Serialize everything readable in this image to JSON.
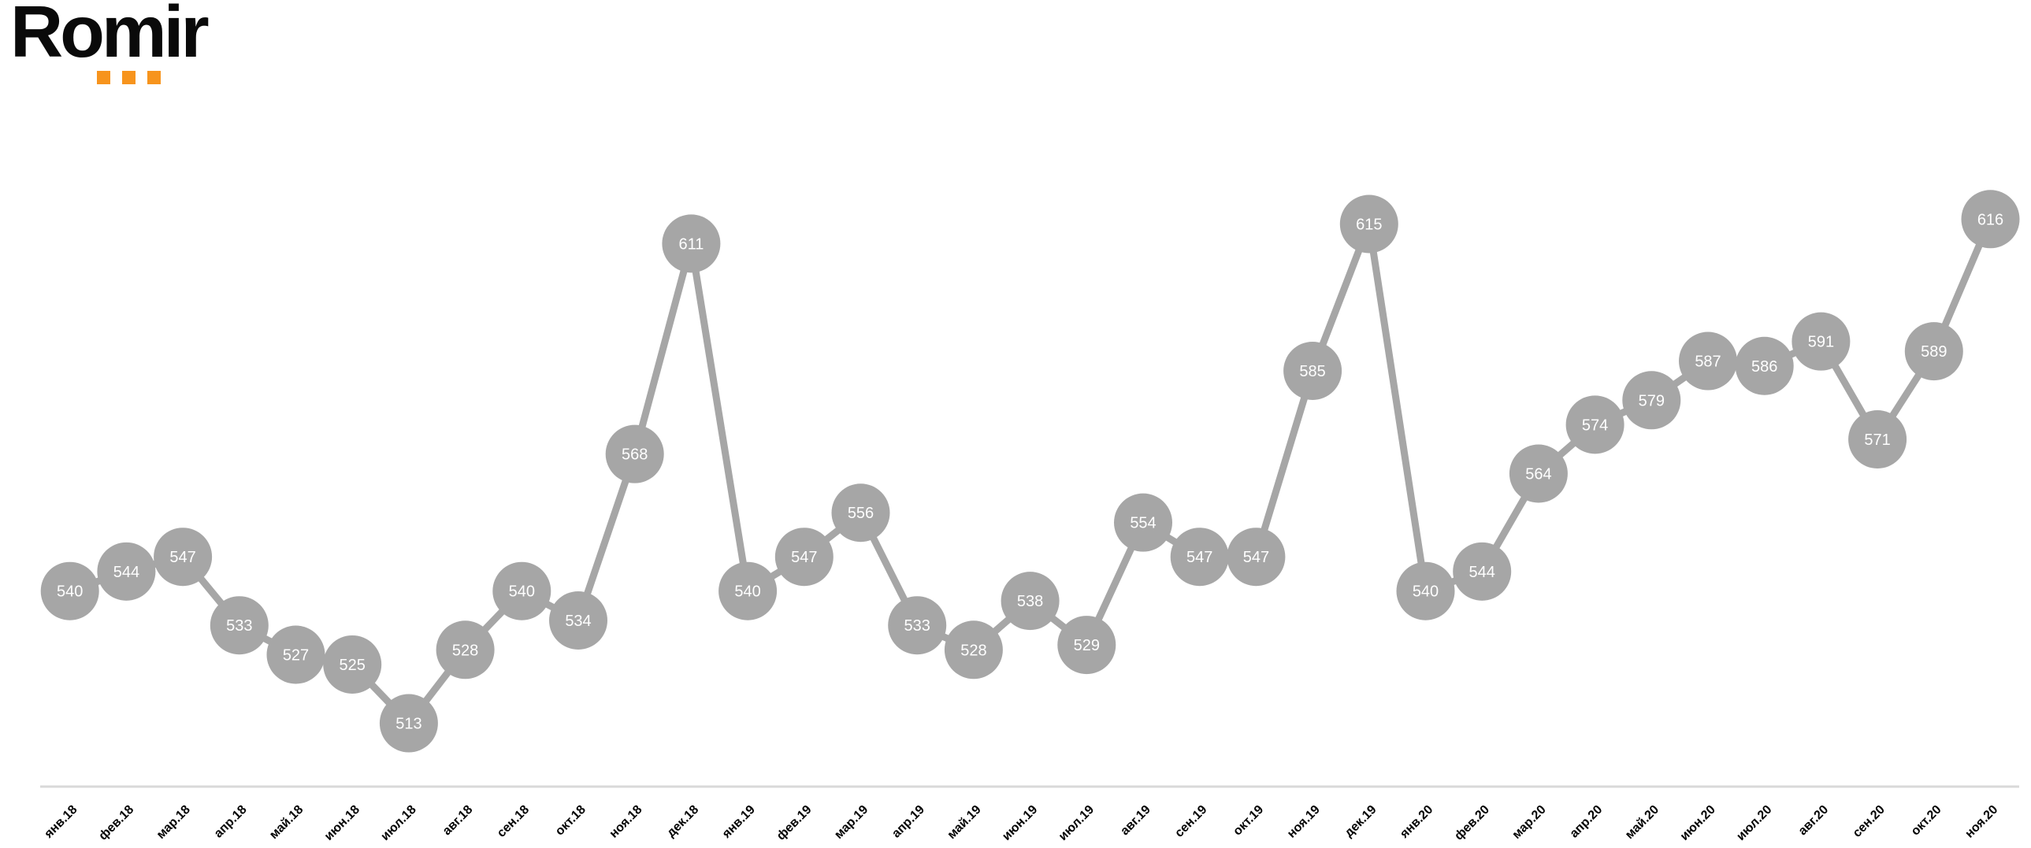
{
  "logo": {
    "text": "Romir",
    "text_color": "#0A0A0A",
    "brand_orange": "#F7941D",
    "dot_count": 3
  },
  "chart_data": {
    "type": "line",
    "title": "",
    "xlabel": "",
    "ylabel": "",
    "legend": false,
    "grid": false,
    "y_axis_visible": false,
    "data_labels": "inside-markers",
    "marker_shape": "circle",
    "marker_color": "#A6A6A6",
    "line_color": "#A6A6A6",
    "value_label_color": "#FFFFFF",
    "axis_line_color": "#D9D9D9",
    "axis_label_color": "#000000",
    "ylim": [
      505,
      625
    ],
    "categories": [
      "янв.18",
      "фев.18",
      "мар.18",
      "апр.18",
      "май.18",
      "июн.18",
      "июл.18",
      "авг.18",
      "сен.18",
      "окт.18",
      "ноя.18",
      "дек.18",
      "янв.19",
      "фев.19",
      "мар.19",
      "апр.19",
      "май.19",
      "июн.19",
      "июл.19",
      "авг.19",
      "сен.19",
      "окт.19",
      "ноя.19",
      "дек.19",
      "янв.20",
      "фев.20",
      "мар.20",
      "апр.20",
      "май.20",
      "июн.20",
      "июл.20",
      "авг.20",
      "сен.20",
      "окт.20",
      "ноя.20"
    ],
    "values": [
      540,
      544,
      547,
      533,
      527,
      525,
      513,
      528,
      540,
      534,
      568,
      611,
      540,
      547,
      556,
      533,
      528,
      538,
      529,
      554,
      547,
      547,
      585,
      615,
      540,
      544,
      564,
      574,
      579,
      587,
      586,
      591,
      571,
      589,
      616
    ]
  }
}
